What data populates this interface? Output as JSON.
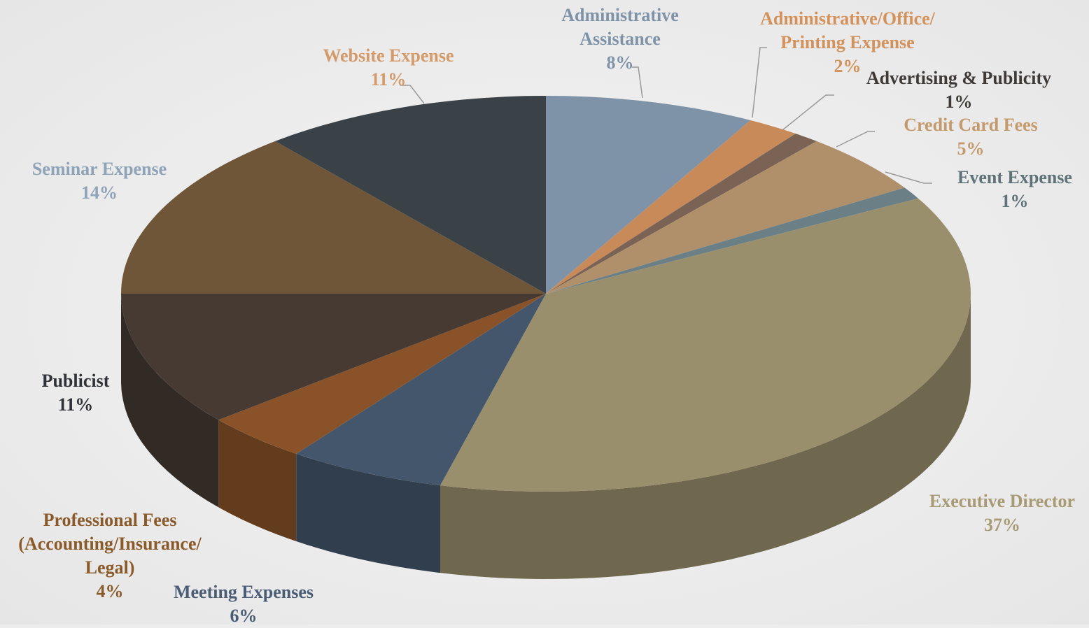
{
  "chart_data": {
    "type": "pie3d",
    "categories": [
      "Administrative Assistance",
      "Administrative/Office/ Printing Expense",
      "Advertising & Publicity",
      "Credit Card Fees",
      "Event Expense",
      "Executive Director",
      "Meeting Expenses",
      "Professional Fees (Accounting/Insurance/ Legal)",
      "Publicist",
      "Seminar Expense",
      "Website Expense"
    ],
    "values": [
      8,
      2,
      1,
      5,
      1,
      37,
      6,
      4,
      11,
      14,
      11
    ],
    "value_labels": [
      "8%",
      "2%",
      "1%",
      "5%",
      "1%",
      "37%",
      "6%",
      "4%",
      "11%",
      "14%",
      "11%"
    ],
    "colors": [
      "#7f93a8",
      "#c98a5a",
      "#7a6355",
      "#b0906a",
      "#6b7f86",
      "#9a8f6c",
      "#44566b",
      "#8a5228",
      "#463a33",
      "#6f5639",
      "#3a4247"
    ],
    "label_colors": [
      "#7f93a8",
      "#d4925a",
      "#3f3a36",
      "#c49a6c",
      "#5e7277",
      "#a89b74",
      "#4a5d75",
      "#8a5a2a",
      "#2f3338",
      "#8fa3b8",
      "#d49a6a"
    ]
  }
}
